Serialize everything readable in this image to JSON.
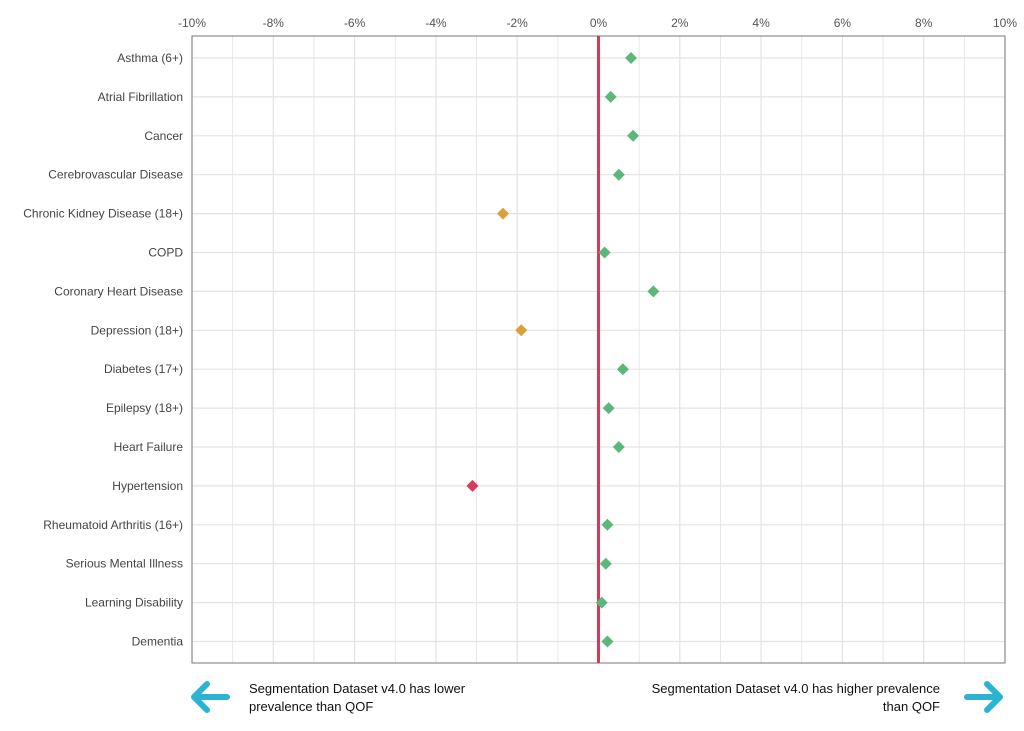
{
  "chart_data": {
    "type": "scatter",
    "orientation": "horizontal",
    "x_ticks": [
      "-10%",
      "-8%",
      "-6%",
      "-4%",
      "-2%",
      "0%",
      "2%",
      "4%",
      "6%",
      "8%",
      "10%"
    ],
    "xlim": [
      -10,
      10
    ],
    "x_unit": "%",
    "grid": true,
    "reference_line": {
      "x": 0,
      "color": "#d63a5a"
    },
    "categories": [
      "Asthma (6+)",
      "Atrial Fibrillation",
      "Cancer",
      "Cerebrovascular Disease",
      "Chronic Kidney Disease (18+)",
      "COPD",
      "Coronary Heart Disease",
      "Depression (18+)",
      "Diabetes (17+)",
      "Epilepsy (18+)",
      "Heart Failure",
      "Hypertension",
      "Rheumatoid Arthritis (16+)",
      "Serious Mental Illness",
      "Learning Disability",
      "Dementia"
    ],
    "values": [
      0.8,
      0.3,
      0.85,
      0.5,
      -2.35,
      0.15,
      1.35,
      -1.9,
      0.6,
      0.25,
      0.5,
      -3.1,
      0.22,
      0.18,
      0.08,
      0.22
    ],
    "point_colors": [
      "#5cb87a",
      "#5cb87a",
      "#5cb87a",
      "#5cb87a",
      "#d9a13b",
      "#5cb87a",
      "#5cb87a",
      "#d9a13b",
      "#5cb87a",
      "#5cb87a",
      "#5cb87a",
      "#d63a5a",
      "#5cb87a",
      "#5cb87a",
      "#5cb87a",
      "#5cb87a"
    ]
  },
  "annotations": {
    "lower": "Segmentation Dataset v4.0 has lower prevalence than QOF",
    "higher": "Segmentation Dataset v4.0 has higher prevalence than QOF"
  },
  "colors": {
    "arrow": "#2bb3d4",
    "grid": "#e3e3e3",
    "border": "#777777"
  },
  "icons": {
    "left_arrow": "arrow-left-icon",
    "right_arrow": "arrow-right-icon"
  }
}
